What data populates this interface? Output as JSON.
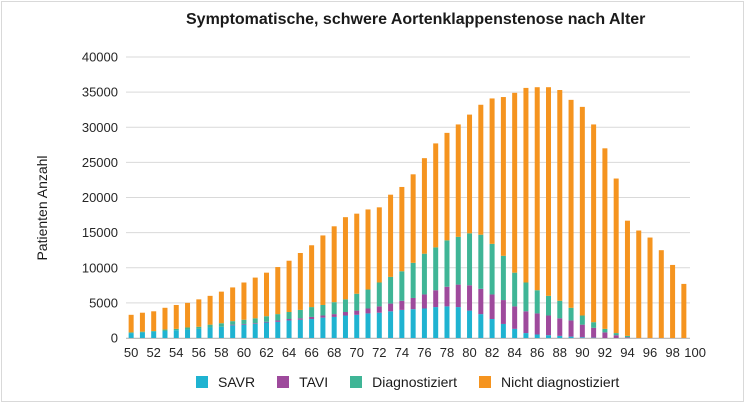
{
  "chart_data": {
    "type": "bar",
    "stacked": true,
    "title": "Symptomatische, schwere Aortenklappenstenose nach Alter",
    "xlabel": "",
    "ylabel": "Patienten Anzahl",
    "ylim": [
      0,
      40000
    ],
    "yticks": [
      "0",
      "5000",
      "10000",
      "15000",
      "20000",
      "25000",
      "30000",
      "35000",
      "40000"
    ],
    "xticks": [
      "50",
      "52",
      "54",
      "56",
      "58",
      "60",
      "62",
      "64",
      "66",
      "68",
      "70",
      "72",
      "74",
      "76",
      "78",
      "80",
      "82",
      "84",
      "86",
      "88",
      "90",
      "92",
      "94",
      "96",
      "98",
      "100"
    ],
    "grid": true,
    "legend_position": "bottom",
    "categories": [
      50,
      51,
      52,
      53,
      54,
      55,
      56,
      57,
      58,
      59,
      60,
      61,
      62,
      63,
      64,
      65,
      66,
      67,
      68,
      69,
      70,
      71,
      72,
      73,
      74,
      75,
      76,
      77,
      78,
      79,
      80,
      81,
      82,
      83,
      84,
      85,
      86,
      87,
      88,
      89,
      90,
      91,
      92,
      93,
      94,
      95,
      96,
      97,
      98,
      99
    ],
    "totals": [
      3300,
      3600,
      3800,
      4300,
      4700,
      5000,
      5500,
      6000,
      6600,
      7200,
      7900,
      8600,
      9300,
      10100,
      11000,
      12100,
      13200,
      14600,
      15900,
      17200,
      17700,
      18300,
      18600,
      20400,
      21500,
      23300,
      25600,
      27700,
      29200,
      30400,
      31800,
      33200,
      34100,
      34300,
      34900,
      35600,
      35700,
      35700,
      35300,
      33900,
      32900,
      30400,
      27000,
      22700,
      16700,
      15300,
      14300,
      12500,
      10400,
      7700
    ],
    "series": [
      {
        "name": "SAVR",
        "color": "#1fb3d1",
        "values": [
          700,
          800,
          900,
          1000,
          1100,
          1200,
          1300,
          1500,
          1600,
          1800,
          1900,
          2000,
          2200,
          2300,
          2500,
          2600,
          2700,
          2900,
          3000,
          3200,
          3300,
          3500,
          3600,
          3800,
          4000,
          4100,
          4200,
          4400,
          4500,
          4400,
          3900,
          3400,
          2700,
          2000,
          1300,
          700,
          500,
          400,
          300,
          200,
          100,
          50,
          0,
          0,
          0,
          0,
          0,
          0,
          0,
          0
        ]
      },
      {
        "name": "TAVI",
        "color": "#9e4a9c",
        "values": [
          0,
          0,
          0,
          0,
          0,
          0,
          0,
          0,
          0,
          100,
          100,
          100,
          100,
          200,
          200,
          200,
          300,
          300,
          400,
          500,
          600,
          700,
          900,
          1100,
          1300,
          1600,
          2000,
          2400,
          2800,
          3200,
          3600,
          3600,
          3500,
          3400,
          3200,
          3100,
          3000,
          2800,
          2500,
          2300,
          1800,
          1400,
          800,
          400,
          100,
          0,
          0,
          0,
          0,
          0
        ]
      },
      {
        "name": "Diagnostiziert",
        "color": "#3fb596",
        "values": [
          100,
          100,
          100,
          200,
          200,
          300,
          300,
          400,
          500,
          500,
          600,
          700,
          800,
          900,
          1000,
          1200,
          1400,
          1500,
          1700,
          1800,
          2400,
          2700,
          3400,
          3800,
          4200,
          5000,
          5800,
          6100,
          6600,
          6800,
          7400,
          7700,
          7200,
          6300,
          4800,
          4100,
          3300,
          2800,
          2500,
          1800,
          1300,
          800,
          500,
          300,
          200,
          0,
          0,
          0,
          0,
          0
        ]
      },
      {
        "name": "Nicht diagnostiziert",
        "color": "#f5941f",
        "values": [
          2500,
          2700,
          2800,
          3100,
          3400,
          3500,
          3900,
          4100,
          4500,
          4800,
          5300,
          5800,
          6200,
          6700,
          7300,
          8100,
          8800,
          9900,
          10800,
          11700,
          11400,
          11400,
          10700,
          11700,
          12000,
          12600,
          13600,
          14800,
          15300,
          16000,
          16900,
          18500,
          20700,
          22600,
          25600,
          27700,
          28900,
          29700,
          30000,
          29600,
          29700,
          28150,
          25700,
          22000,
          16400,
          15300,
          14300,
          12500,
          10400,
          7700
        ]
      }
    ]
  }
}
